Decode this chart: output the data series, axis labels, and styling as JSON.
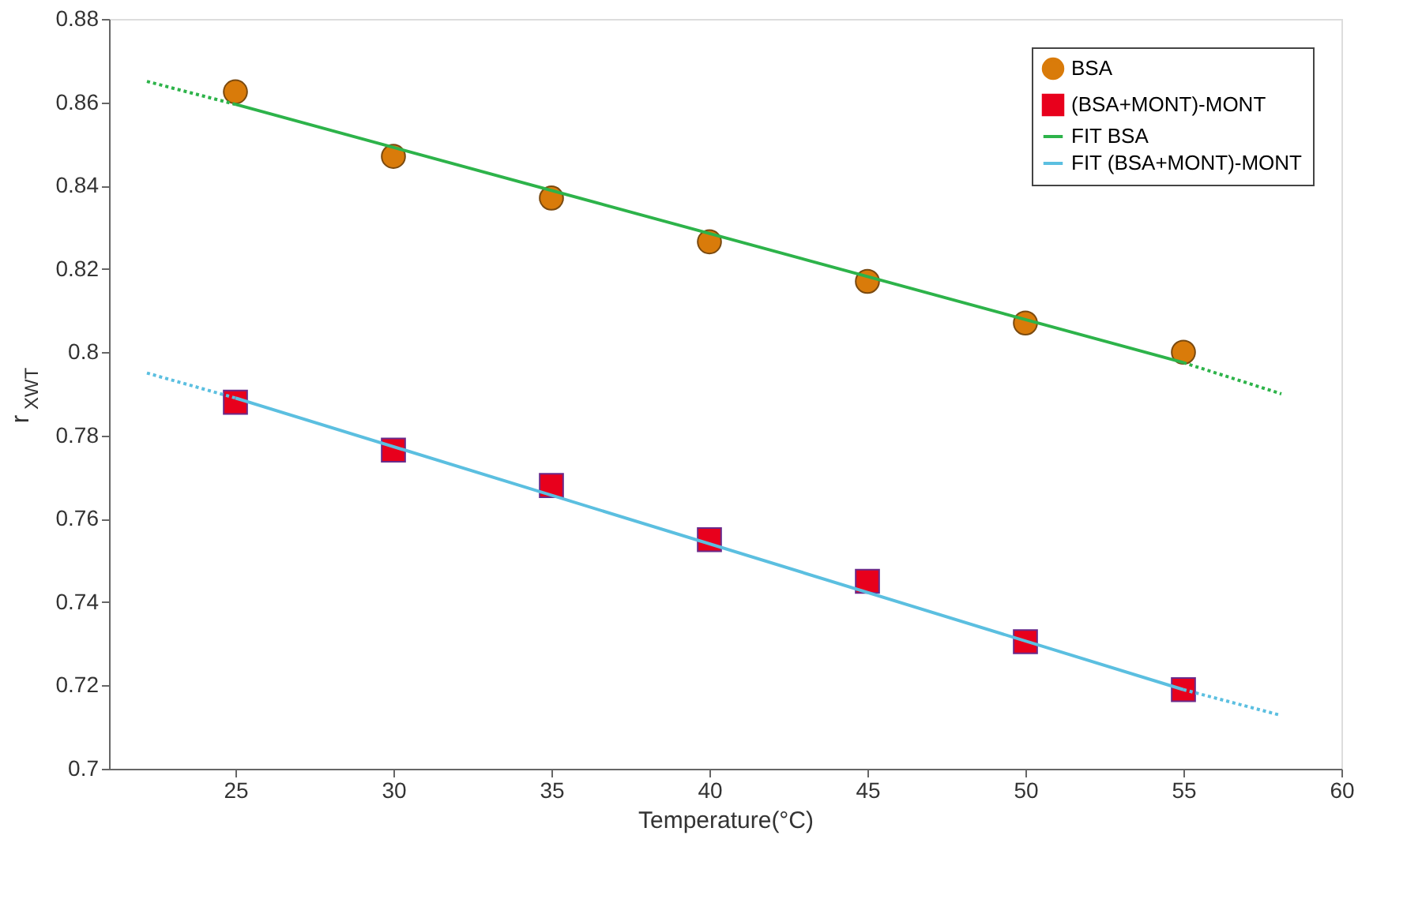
{
  "chart_data": {
    "type": "scatter",
    "xlabel": "Temperature(°C)",
    "ylabel": "r$_{XWT}$",
    "xlim": [
      21,
      60
    ],
    "xticks": [
      25,
      30,
      35,
      40,
      45,
      50,
      55,
      60
    ],
    "ylim": [
      0.7,
      0.88
    ],
    "yticks": [
      {
        "value": 0.7,
        "label": "0.7"
      },
      0.72,
      0.74,
      0.76,
      0.78,
      {
        "value": 0.8,
        "label": "0.8"
      },
      0.82,
      0.84,
      0.86,
      0.88
    ],
    "grid": false,
    "legend": "top right",
    "series": [
      {
        "name": "BSA",
        "marker": "circle",
        "color": "#d97b0a",
        "x": [
          25,
          30,
          35,
          40,
          45,
          50,
          55
        ],
        "values": [
          0.8625,
          0.847,
          0.837,
          0.8265,
          0.817,
          0.807,
          0.8
        ]
      },
      {
        "name": "(BSA+MONT)-MONT",
        "marker": "square",
        "color": "#e8001c",
        "x": [
          25,
          30,
          35,
          40,
          45,
          50,
          55
        ],
        "values": [
          0.788,
          0.7765,
          0.768,
          0.755,
          0.745,
          0.7305,
          0.719
        ]
      },
      {
        "name": "FIT BSA",
        "type": "line",
        "line_style": "solid",
        "color": "#2db34a",
        "x": [
          25,
          55
        ],
        "values": [
          0.8595,
          0.7975
        ]
      },
      {
        "name": "FIT (BSA+MONT)-MONT",
        "type": "line",
        "line_style": "solid",
        "color": "#5bbfe0",
        "x": [
          25,
          55
        ],
        "values": [
          0.789,
          0.719
        ]
      },
      {
        "type": "line",
        "line_style": "dotted",
        "color": "#2db34a",
        "x": [
          22.2,
          25
        ],
        "values": [
          0.865,
          0.8595
        ]
      },
      {
        "type": "line",
        "line_style": "dotted",
        "color": "#2db34a",
        "x": [
          55,
          58.1
        ],
        "values": [
          0.7975,
          0.79
        ]
      },
      {
        "type": "line",
        "line_style": "dotted",
        "color": "#5bbfe0",
        "x": [
          22.2,
          25
        ],
        "values": [
          0.795,
          0.789
        ]
      },
      {
        "type": "line",
        "line_style": "dotted",
        "color": "#5bbfe0",
        "x": [
          55,
          58
        ],
        "values": [
          0.719,
          0.713
        ]
      }
    ]
  }
}
